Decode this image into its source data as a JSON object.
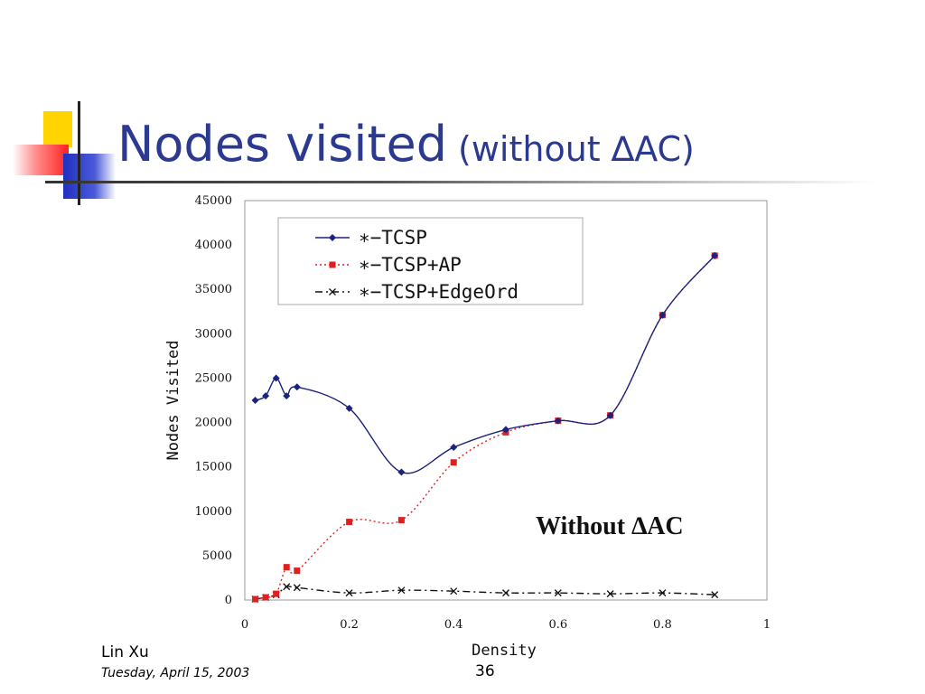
{
  "slide": {
    "title_main": "Nodes visited",
    "title_sub": "(without ∆AC)",
    "author": "Lin Xu",
    "date": "Tuesday, April 15, 2003",
    "page_number": "36"
  },
  "chart_data": {
    "type": "line",
    "xlabel": "Density",
    "ylabel": "Nodes Visited",
    "xlim": [
      0,
      1
    ],
    "ylim": [
      0,
      45000
    ],
    "x_ticks": [
      "0",
      "0.2",
      "0.4",
      "0.6",
      "0.8",
      "1"
    ],
    "y_ticks": [
      "0",
      "5000",
      "10000",
      "15000",
      "20000",
      "25000",
      "30000",
      "35000",
      "40000",
      "45000"
    ],
    "grid": false,
    "legend_position": "top-left",
    "annotation": "Without ∆AC",
    "series": [
      {
        "name": "∗−TCSP",
        "color": "#1a237e",
        "marker": "diamond",
        "line_style": "solid",
        "x": [
          0.02,
          0.04,
          0.06,
          0.08,
          0.1,
          0.2,
          0.3,
          0.4,
          0.5,
          0.6,
          0.7,
          0.8,
          0.9
        ],
        "y": [
          22500,
          23000,
          25000,
          23000,
          24000,
          21600,
          14400,
          17200,
          19200,
          20200,
          20800,
          32100,
          38800
        ]
      },
      {
        "name": "∗−TCSP+AP",
        "color": "#e02020",
        "marker": "square",
        "line_style": "dotted",
        "x": [
          0.02,
          0.04,
          0.06,
          0.08,
          0.1,
          0.2,
          0.3,
          0.4,
          0.5,
          0.6,
          0.7,
          0.8,
          0.9
        ],
        "y": [
          100,
          300,
          700,
          3700,
          3300,
          8800,
          9000,
          15500,
          18900,
          20200,
          20800,
          32100,
          38800
        ]
      },
      {
        "name": "∗−TCSP+EdgeOrd",
        "color": "#111111",
        "marker": "x",
        "line_style": "dashdot",
        "x": [
          0.02,
          0.04,
          0.06,
          0.08,
          0.1,
          0.2,
          0.3,
          0.4,
          0.5,
          0.6,
          0.7,
          0.8,
          0.9
        ],
        "y": [
          100,
          300,
          600,
          1500,
          1400,
          800,
          1100,
          1000,
          800,
          800,
          700,
          800,
          600
        ]
      }
    ]
  }
}
